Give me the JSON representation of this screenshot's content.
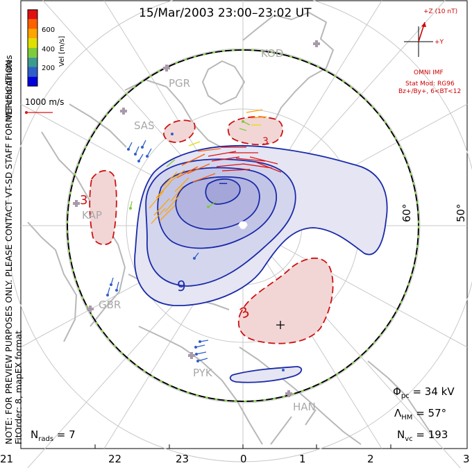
{
  "title": "15/Mar/2003 23:00–23:02 UT",
  "colorbar": {
    "title": "Vel [m/s]",
    "labels": [
      "600",
      "400",
      "200"
    ],
    "colors": [
      "#0000dd",
      "#2e5fc9",
      "#3d9a8f",
      "#7ecb3b",
      "#e0e000",
      "#ffa500",
      "#ff6000",
      "#e01010"
    ]
  },
  "coordinates_label": "MLT coordinates",
  "scale_vector_label": "1000 m/s",
  "side_note_line1": "NOTE: FOR PREVIEW PURPOSES ONLY. PLEASE CONTACT VT-SD STAFF FOR VERIFICATION.",
  "side_note_line2": "FitOrder: 8, mapEX format",
  "imf": {
    "bz_label": "+Z (10 nT)",
    "by_label": "+Y",
    "source": "OMNI IMF",
    "model": "Stat Mod: RG96",
    "condition": "Bz+/By+, 6<BT<12"
  },
  "lat_labels": [
    "60°",
    "50°"
  ],
  "stations": [
    "KOD",
    "PGR",
    "SAS",
    "KAP",
    "GBR",
    "PYK",
    "HAN"
  ],
  "contour_labels": [
    "−",
    "9",
    "3",
    "3",
    "3"
  ],
  "mlt_ticks": [
    "21",
    "22",
    "23",
    "0",
    "1",
    "2",
    "3"
  ],
  "stats": {
    "phi_pc_label": "Φ",
    "phi_pc_sub": "pc",
    "phi_pc_value": " = 34 kV",
    "lambda_label": "Λ",
    "lambda_sub": "HM",
    "lambda_value": " = 57°",
    "nvc_label": "N",
    "nvc_sub": "vc",
    "nvc_value": " = 193",
    "nrads_label": "N",
    "nrads_sub": "rads",
    "nrads_value": " = 7"
  },
  "colors": {
    "coastline": "#b8b8b8",
    "grid": "#c8c8c8",
    "negative_cell_line": "#1a2aa8",
    "negative_cell_fill": "#c9cbe8",
    "positive_cell_line": "#cc1111",
    "positive_cell_fill": "#f2d6d6",
    "hmb_line": "#000000",
    "hmb_dash": "#7fcf3f",
    "station_marker": "#a99aab"
  }
}
